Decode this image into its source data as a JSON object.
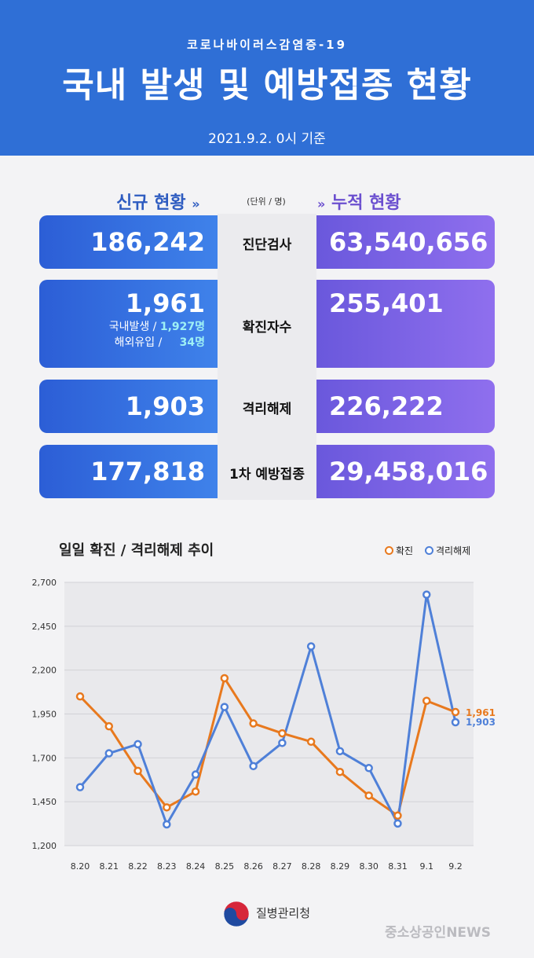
{
  "header": {
    "subtitle": "코로나바이러스감염증-19",
    "title": "국내 발생 및 예방접종 현황",
    "date": "2021.9.2. 0시 기준"
  },
  "sections": {
    "left_title": "신규 현황",
    "right_title": "누적 현황",
    "unit": "(단위 / 명)"
  },
  "rows": [
    {
      "label": "진단검사",
      "new": "186,242",
      "total": "63,540,656"
    },
    {
      "label": "확진자수",
      "new": "1,961",
      "total": "255,401",
      "domestic_label": "국내발생 /",
      "domestic_value": "1,927명",
      "overseas_label": "해외유입 /",
      "overseas_value": "34명"
    },
    {
      "label": "격리해제",
      "new": "1,903",
      "total": "226,222"
    },
    {
      "label": "1차 예방접종",
      "new": "177,818",
      "total": "29,458,016"
    }
  ],
  "chart_title": "일일 확진 / 격리해제 추이",
  "colors": {
    "confirmed": "#e8791e",
    "released": "#4f80d8",
    "header": "#2f6fd6"
  },
  "chart_data": {
    "type": "line",
    "title": "일일 확진 / 격리해제 추이",
    "categories": [
      "8.20",
      "8.21",
      "8.22",
      "8.23",
      "8.24",
      "8.25",
      "8.26",
      "8.27",
      "8.28",
      "8.29",
      "8.30",
      "8.31",
      "9.1",
      "9.2"
    ],
    "series": [
      {
        "name": "확진",
        "values": [
          2050,
          1880,
          1626,
          1418,
          1508,
          2154,
          1896,
          1840,
          1792,
          1620,
          1485,
          1371,
          2025,
          1961
        ]
      },
      {
        "name": "격리해제",
        "values": [
          1533,
          1726,
          1778,
          1321,
          1605,
          1990,
          1653,
          1785,
          2335,
          1738,
          1642,
          1326,
          2630,
          1903
        ]
      }
    ],
    "end_labels": {
      "confirmed": "1,961",
      "released": "1,903"
    },
    "yticks": [
      1200,
      1450,
      1700,
      1950,
      2200,
      2450,
      2700
    ],
    "ytick_labels": [
      "1,200",
      "1,450",
      "1,700",
      "1,950",
      "2,200",
      "2,450",
      "2,700"
    ],
    "ylim": [
      1200,
      2700
    ],
    "grid": true,
    "legend": "top-right"
  },
  "footer": {
    "org": "질병관리청",
    "source": "중소상공인NEWS"
  }
}
